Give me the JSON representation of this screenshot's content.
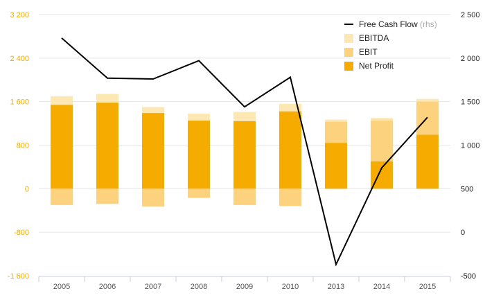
{
  "colors": {
    "ebitda": "#fde7b3",
    "ebit": "#fcd27f",
    "net_profit": "#f5ab00",
    "fcf": "#000000",
    "grid": "#e6e6e6",
    "axis": "#c8cfe0",
    "left_ticks": "#f2a900",
    "right_ticks": "#222222"
  },
  "chart_data": {
    "type": "bar",
    "categories": [
      "2005",
      "2006",
      "2007",
      "2008",
      "2009",
      "2010",
      "2013",
      "2014",
      "2015"
    ],
    "y_left": {
      "ticks": [
        3200,
        2400,
        1600,
        800,
        0,
        -800,
        -1600
      ],
      "tick_labels": [
        "3 200",
        "2 400",
        "1 600",
        "800",
        "0",
        "-800",
        "-1 600"
      ],
      "ylim": [
        -1600,
        3200
      ]
    },
    "y_right": {
      "ticks": [
        2500,
        2000,
        1500,
        1000,
        500,
        0,
        -500
      ],
      "tick_labels": [
        "2 500",
        "2 000",
        "1 500",
        "1 000",
        "500",
        "0",
        "-500"
      ],
      "ylim": [
        -500,
        2500
      ]
    },
    "series": [
      {
        "name": "EBITDA",
        "type": "bar",
        "axis": "left",
        "values": [
          1700,
          1740,
          1500,
          1380,
          1410,
          1560,
          1270,
          1300,
          1650
        ]
      },
      {
        "name": "EBIT",
        "type": "bar",
        "axis": "left",
        "values": [
          -300,
          -280,
          -330,
          -170,
          -300,
          -320,
          1230,
          1250,
          1600
        ]
      },
      {
        "name": "Net Profit",
        "type": "bar",
        "axis": "left",
        "values": [
          1540,
          1580,
          1390,
          1250,
          1240,
          1420,
          840,
          500,
          990
        ]
      },
      {
        "name": "Free Cash Flow",
        "name_suffix": "(rhs)",
        "type": "line",
        "axis": "right",
        "values": [
          2230,
          1770,
          1760,
          1970,
          1440,
          1780,
          -370,
          740,
          1320
        ]
      }
    ],
    "legend": {
      "position": "top-right",
      "items": [
        {
          "label": "Free Cash Flow",
          "suffix": "(rhs)",
          "key": "fcf",
          "marker": "line"
        },
        {
          "label": "EBITDA",
          "suffix": "",
          "key": "ebitda",
          "marker": "square"
        },
        {
          "label": "EBIT",
          "suffix": "",
          "key": "ebit",
          "marker": "square"
        },
        {
          "label": "Net Profit",
          "suffix": "",
          "key": "net_profit",
          "marker": "square"
        }
      ]
    },
    "grid": true
  }
}
